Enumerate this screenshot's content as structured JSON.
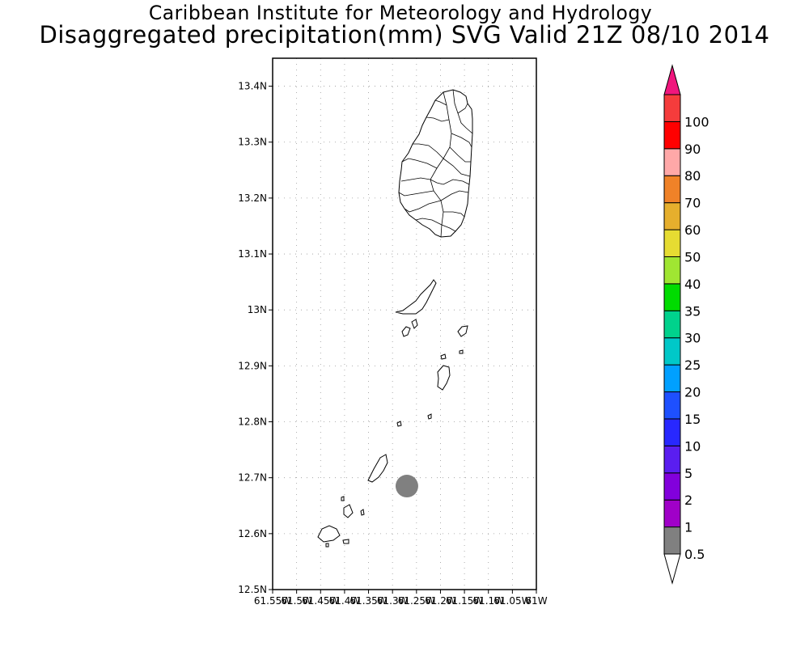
{
  "title": "Caribbean Institute for Meteorology and Hydrology",
  "subtitle": "Disaggregated precipitation(mm) SVG Valid 21Z 08/10 2014",
  "map": {
    "lon_range": [
      -61.55,
      -61.0
    ],
    "lat_range": [
      12.5,
      13.45
    ],
    "y_ticks": [
      {
        "value": 13.4,
        "label": "13.4N"
      },
      {
        "value": 13.3,
        "label": "13.3N"
      },
      {
        "value": 13.2,
        "label": "13.2N"
      },
      {
        "value": 13.1,
        "label": "13.1N"
      },
      {
        "value": 13.0,
        "label": "13N"
      },
      {
        "value": 12.9,
        "label": "12.9N"
      },
      {
        "value": 12.8,
        "label": "12.8N"
      },
      {
        "value": 12.7,
        "label": "12.7N"
      },
      {
        "value": 12.6,
        "label": "12.6N"
      },
      {
        "value": 12.5,
        "label": "12.5N"
      }
    ],
    "x_ticks": [
      {
        "value": -61.55,
        "label": "61.55W"
      },
      {
        "value": -61.5,
        "label": "61.5W"
      },
      {
        "value": -61.45,
        "label": "61.45W"
      },
      {
        "value": -61.4,
        "label": "61.4W"
      },
      {
        "value": -61.35,
        "label": "61.35W"
      },
      {
        "value": -61.3,
        "label": "61.3W"
      },
      {
        "value": -61.25,
        "label": "61.25W"
      },
      {
        "value": -61.2,
        "label": "61.2W"
      },
      {
        "value": -61.15,
        "label": "61.15W"
      },
      {
        "value": -61.1,
        "label": "61.1W"
      },
      {
        "value": -61.05,
        "label": "61.05W"
      },
      {
        "value": -61.0,
        "label": "61W"
      }
    ],
    "precip_cells": [
      {
        "lon": -61.27,
        "lat": 12.685,
        "class": "0.5-1",
        "color": "#808080"
      }
    ]
  },
  "colorbar": {
    "levels": [
      "0.5",
      "1",
      "2",
      "5",
      "10",
      "15",
      "20",
      "25",
      "30",
      "35",
      "40",
      "50",
      "60",
      "70",
      "80",
      "90",
      "100"
    ],
    "colors": [
      "#808080",
      "#a000c8",
      "#8200dc",
      "#5a1ef0",
      "#2828ff",
      "#1e50ff",
      "#00a0ff",
      "#00c8c8",
      "#00d28c",
      "#00dc00",
      "#a0e632",
      "#e6dc32",
      "#e6af2d",
      "#f08228",
      "#ffa8a8",
      "#ff0000",
      "#f53c3c"
    ],
    "under_color": "#ffffff",
    "over_color": "#f0167d"
  }
}
